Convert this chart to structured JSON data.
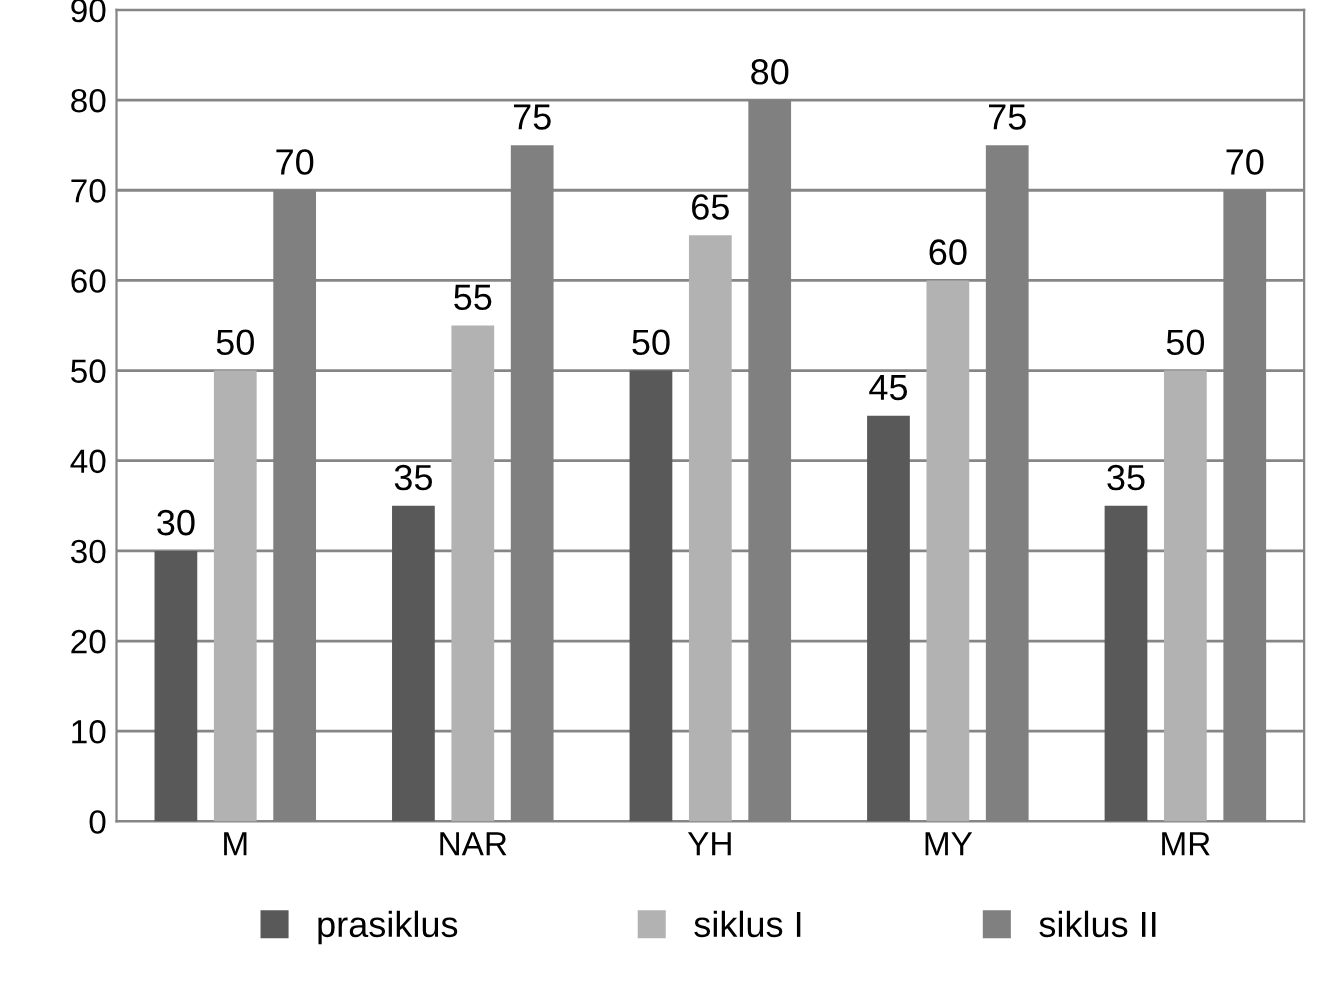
{
  "chart_data": {
    "type": "bar",
    "categories": [
      "M",
      "NAR",
      "YH",
      "MY",
      "MR"
    ],
    "series": [
      {
        "name": "prasiklus",
        "color": "#595959",
        "values": [
          30,
          35,
          50,
          45,
          35
        ]
      },
      {
        "name": "siklus I",
        "color": "#b2b2b2",
        "values": [
          50,
          55,
          65,
          60,
          50
        ]
      },
      {
        "name": "siklus II",
        "color": "#808080",
        "values": [
          70,
          75,
          80,
          75,
          70
        ]
      }
    ],
    "ylim": [
      0,
      90
    ],
    "yticks": [
      0,
      10,
      20,
      30,
      40,
      50,
      60,
      70,
      80,
      90
    ],
    "grid": "y",
    "legend": "bottom",
    "data_labels": true
  }
}
